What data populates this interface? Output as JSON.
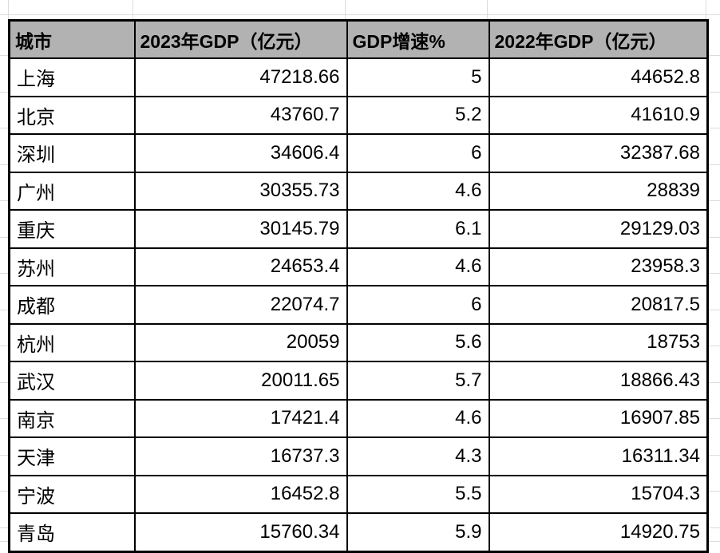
{
  "chart_data": {
    "type": "table",
    "columns": [
      "城市",
      "2023年GDP（亿元）",
      "GDP增速%",
      "2022年GDP（亿元）"
    ],
    "rows": [
      [
        "上海",
        47218.66,
        5,
        44652.8
      ],
      [
        "北京",
        43760.7,
        5.2,
        41610.9
      ],
      [
        "深圳",
        34606.4,
        6,
        32387.68
      ],
      [
        "广州",
        30355.73,
        4.6,
        28839
      ],
      [
        "重庆",
        30145.79,
        6.1,
        29129.03
      ],
      [
        "苏州",
        24653.4,
        4.6,
        23958.3
      ],
      [
        "成都",
        22074.7,
        6,
        20817.5
      ],
      [
        "杭州",
        20059,
        5.6,
        18753
      ],
      [
        "武汉",
        20011.65,
        5.7,
        18866.43
      ],
      [
        "南京",
        17421.4,
        4.6,
        16907.85
      ],
      [
        "天津",
        16737.3,
        4.3,
        16311.34
      ],
      [
        "宁波",
        16452.8,
        5.5,
        15704.3
      ],
      [
        "青岛",
        15760.34,
        5.9,
        14920.75
      ]
    ]
  },
  "colors": {
    "header_bg": "#b2b2b2",
    "table_border": "#000000",
    "sheet_gridline": "#dcdcdc",
    "background": "#ffffff",
    "text": "#000000"
  }
}
